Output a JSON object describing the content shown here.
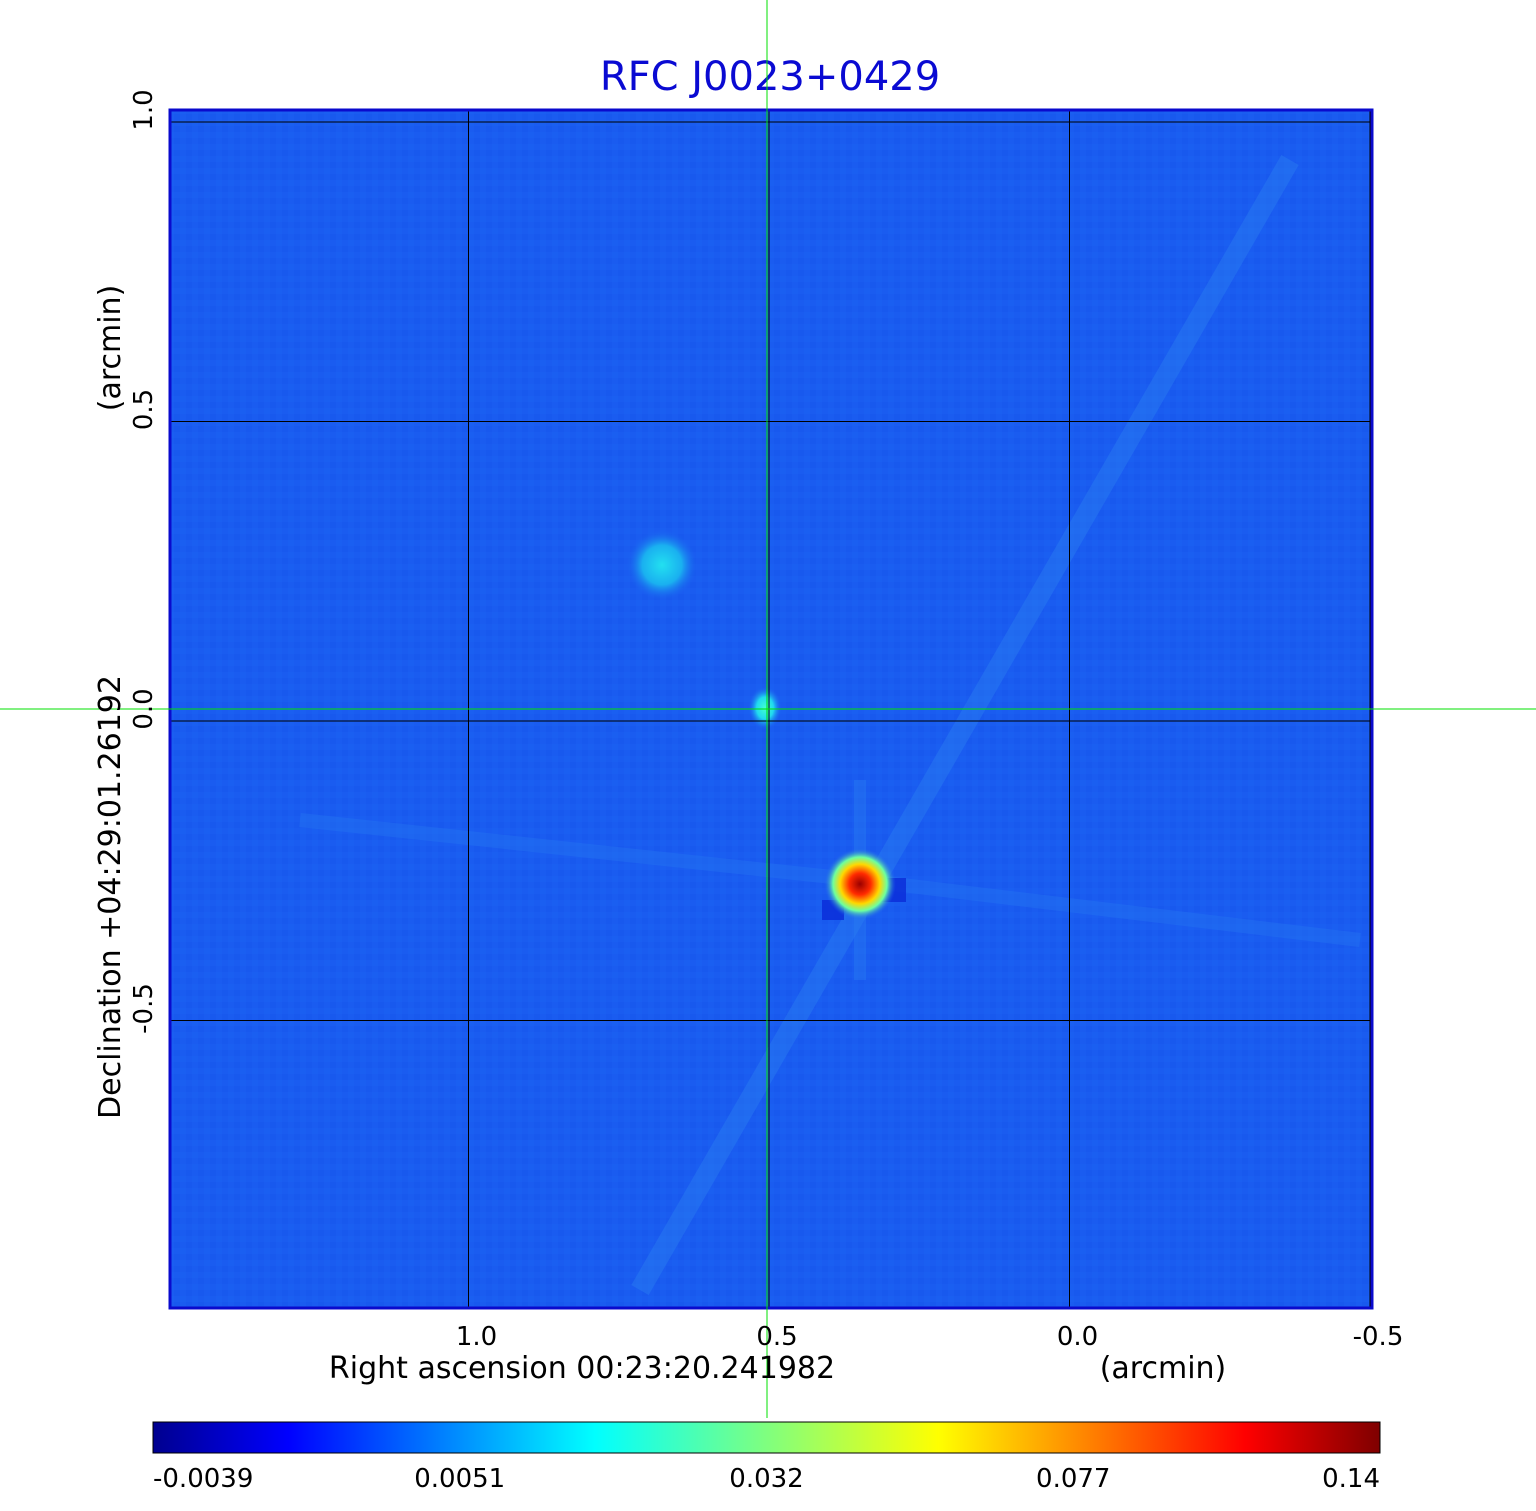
{
  "chart_data": {
    "type": "heatmap",
    "title": "RFC J0023+0429",
    "xlabel": "Right ascension  00:23:20.241982",
    "xunit": "(arcmin)",
    "ylabel": "Declination  +04:29:01.26192",
    "yunit": "(arcmin)",
    "x_ticks": [
      "1.0",
      "0.5",
      "0.0",
      "-0.5"
    ],
    "y_ticks": [
      "1.0",
      "0.5",
      "0.0",
      "-0.5"
    ],
    "xlim": [
      1.5,
      -0.5
    ],
    "ylim": [
      -1.0,
      1.0
    ],
    "grid": true,
    "crosshair": {
      "x": 0.5,
      "y": 0.0
    },
    "colorbar": {
      "ticks": [
        "-0.0039",
        "0.0051",
        "0.032",
        "0.077",
        "0.14"
      ],
      "min": -0.0039,
      "max": 0.14,
      "colormap": "jet"
    },
    "sources": [
      {
        "x": 0.34,
        "y": -0.27,
        "value": 0.14
      },
      {
        "x": 0.5,
        "y": 0.0,
        "value": 0.032
      },
      {
        "x": 0.66,
        "y": 0.25,
        "value": 0.02
      }
    ],
    "colors": {
      "title": "#0a0ad2",
      "background": "#1a5cf0",
      "frame": "#0a0acd",
      "grid": "#000000",
      "crosshair": "#00e000"
    }
  }
}
